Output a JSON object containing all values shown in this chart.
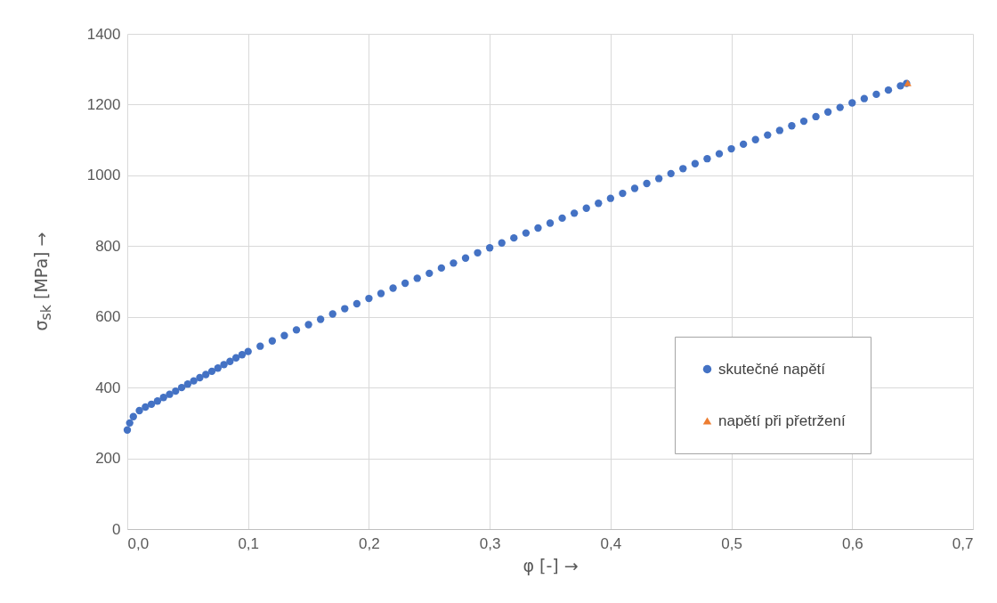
{
  "chart_data": {
    "type": "scatter",
    "xlabel": "φ [-]  →",
    "ylabel": "σ$_{sk}$ [MPa]  →",
    "xlim": [
      0,
      0.7
    ],
    "xticks": [
      {
        "value": 0,
        "label": "0,0"
      },
      {
        "value": 0.1,
        "label": "0,1"
      },
      {
        "value": 0.2,
        "label": "0,2"
      },
      {
        "value": 0.3,
        "label": "0,3"
      },
      {
        "value": 0.4,
        "label": "0,4"
      },
      {
        "value": 0.5,
        "label": "0,5"
      },
      {
        "value": 0.6,
        "label": "0,6"
      },
      {
        "value": 0.7,
        "label": "0,7"
      }
    ],
    "ylim": [
      0,
      1400
    ],
    "yticks": [
      0,
      200,
      400,
      600,
      800,
      1000,
      1200,
      1400
    ],
    "grid": true,
    "legend": "bottom right",
    "series": [
      {
        "name": "skutečné napětí",
        "color": "#4472c4",
        "marker": "circle",
        "x": [
          0,
          0.002,
          0.005,
          0.01,
          0.015,
          0.02,
          0.025,
          0.03,
          0.035,
          0.04,
          0.045,
          0.05,
          0.055,
          0.06,
          0.065,
          0.07,
          0.075,
          0.08,
          0.085,
          0.09,
          0.095,
          0.1,
          0.11,
          0.12,
          0.13,
          0.14,
          0.15,
          0.16,
          0.17,
          0.18,
          0.19,
          0.2,
          0.21,
          0.22,
          0.23,
          0.24,
          0.25,
          0.26,
          0.27,
          0.28,
          0.29,
          0.3,
          0.31,
          0.32,
          0.33,
          0.34,
          0.35,
          0.36,
          0.37,
          0.38,
          0.39,
          0.4,
          0.41,
          0.42,
          0.43,
          0.44,
          0.45,
          0.46,
          0.47,
          0.48,
          0.49,
          0.5,
          0.51,
          0.52,
          0.53,
          0.54,
          0.55,
          0.56,
          0.57,
          0.58,
          0.59,
          0.6,
          0.61,
          0.62,
          0.63,
          0.64,
          0.645
        ],
        "values": [
          280,
          300,
          318,
          335,
          345,
          353,
          362,
          372,
          381,
          390,
          400,
          410,
          419,
          428,
          437,
          446,
          455,
          465,
          474,
          484,
          493,
          502,
          517,
          532,
          547,
          563,
          578,
          593,
          608,
          623,
          637,
          652,
          666,
          681,
          695,
          709,
          723,
          738,
          752,
          766,
          781,
          795,
          809,
          823,
          837,
          851,
          865,
          879,
          893,
          907,
          921,
          935,
          949,
          963,
          977,
          991,
          1005,
          1019,
          1033,
          1047,
          1061,
          1075,
          1088,
          1101,
          1114,
          1127,
          1140,
          1153,
          1166,
          1179,
          1192,
          1205,
          1217,
          1229,
          1241,
          1253,
          1260
        ]
      },
      {
        "name": "napětí při přetržení",
        "color": "#ed7d31",
        "marker": "triangle",
        "x": [
          0.646
        ],
        "values": [
          1261
        ]
      }
    ]
  }
}
